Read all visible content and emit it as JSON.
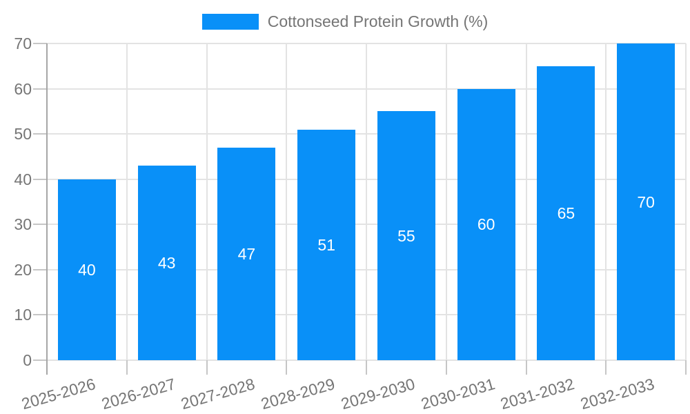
{
  "legend": {
    "label": "Cottonseed Protein Growth (%)"
  },
  "chart_data": {
    "type": "bar",
    "title": "",
    "xlabel": "",
    "ylabel": "",
    "series_name": "Cottonseed Protein Growth (%)",
    "categories": [
      "2025-2026",
      "2026-2027",
      "2027-2028",
      "2028-2029",
      "2029-2030",
      "2030-2031",
      "2031-2032",
      "2032-2033"
    ],
    "values": [
      40,
      43,
      47,
      51,
      55,
      60,
      65,
      70
    ],
    "ylim": [
      0,
      70
    ],
    "yticks": [
      0,
      10,
      20,
      30,
      40,
      50,
      60,
      70
    ],
    "grid": true,
    "legend_position": "top-center",
    "bar_color": "#0990F8",
    "grid_color": "#e3e3e3",
    "axis_color": "#a6a6a6",
    "tick_color": "#c6c6c6",
    "text_color": "#757575",
    "value_label_color": "#ffffff",
    "x_tick_rotation_deg": -16
  }
}
